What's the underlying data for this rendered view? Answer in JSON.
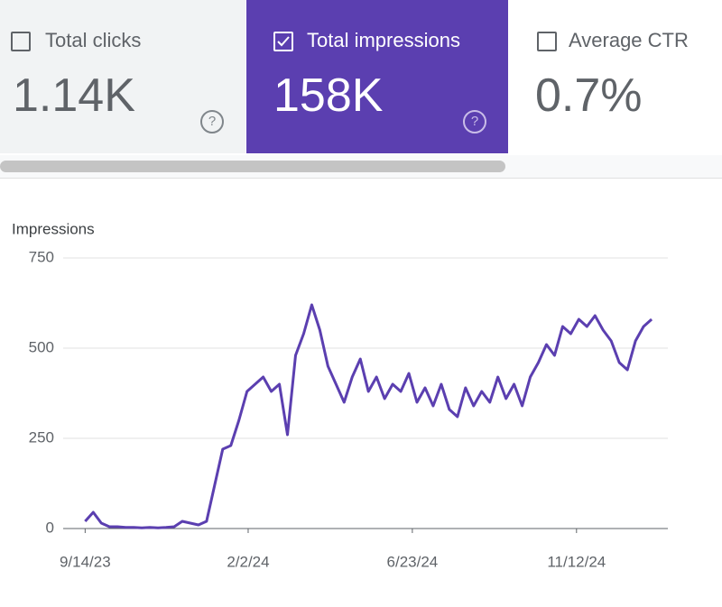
{
  "cards": [
    {
      "label": "Total clicks",
      "value": "1.14K"
    },
    {
      "label": "Total impressions",
      "value": "158K"
    },
    {
      "label": "Average CTR",
      "value": "0.7%"
    }
  ],
  "chart_data": {
    "type": "line",
    "y_label": "Impressions",
    "x": [
      "9/14/23",
      "9/21/23",
      "9/28/23",
      "10/5/23",
      "10/12/23",
      "10/19/23",
      "10/26/23",
      "11/2/23",
      "11/9/23",
      "11/16/23",
      "11/23/23",
      "11/30/23",
      "12/7/23",
      "12/14/23",
      "12/21/23",
      "12/28/23",
      "1/4/24",
      "1/11/24",
      "1/18/24",
      "1/25/24",
      "2/1/24",
      "2/8/24",
      "2/15/24",
      "2/22/24",
      "2/29/24",
      "3/7/24",
      "3/14/24",
      "3/21/24",
      "3/28/24",
      "4/4/24",
      "4/11/24",
      "4/18/24",
      "4/25/24",
      "5/2/24",
      "5/9/24",
      "5/16/24",
      "5/23/24",
      "5/30/24",
      "6/6/24",
      "6/13/24",
      "6/20/24",
      "6/27/24",
      "7/4/24",
      "7/11/24",
      "7/18/24",
      "7/25/24",
      "8/1/24",
      "8/8/24",
      "8/15/24",
      "8/22/24",
      "8/29/24",
      "9/5/24",
      "9/12/24",
      "9/19/24",
      "9/26/24",
      "10/3/24",
      "10/10/24",
      "10/17/24",
      "10/24/24",
      "10/31/24",
      "11/7/24",
      "11/14/24",
      "11/21/24",
      "11/28/24",
      "12/5/24",
      "12/12/24",
      "12/19/24",
      "12/26/24",
      "1/2/25",
      "1/9/25",
      "1/16/25"
    ],
    "series": [
      {
        "name": "Impressions",
        "color": "#5b3fb0",
        "values": [
          20,
          45,
          15,
          5,
          5,
          3,
          3,
          2,
          3,
          2,
          3,
          5,
          20,
          15,
          10,
          20,
          120,
          220,
          230,
          300,
          380,
          400,
          420,
          380,
          400,
          260,
          480,
          540,
          620,
          550,
          450,
          400,
          350,
          420,
          470,
          380,
          420,
          360,
          400,
          380,
          430,
          350,
          390,
          340,
          400,
          330,
          310,
          390,
          340,
          380,
          350,
          420,
          360,
          400,
          340,
          420,
          460,
          510,
          480,
          560,
          540,
          580,
          560,
          590,
          550,
          520,
          460,
          440,
          520,
          560,
          580
        ]
      }
    ],
    "xlim": [
      "8/26/23",
      "1/30/25"
    ],
    "xticks": [
      "9/14/23",
      "2/2/24",
      "6/23/24",
      "11/12/24"
    ],
    "ylim": [
      0,
      750
    ],
    "yticks": [
      0,
      250,
      500,
      750
    ],
    "grid": true
  }
}
